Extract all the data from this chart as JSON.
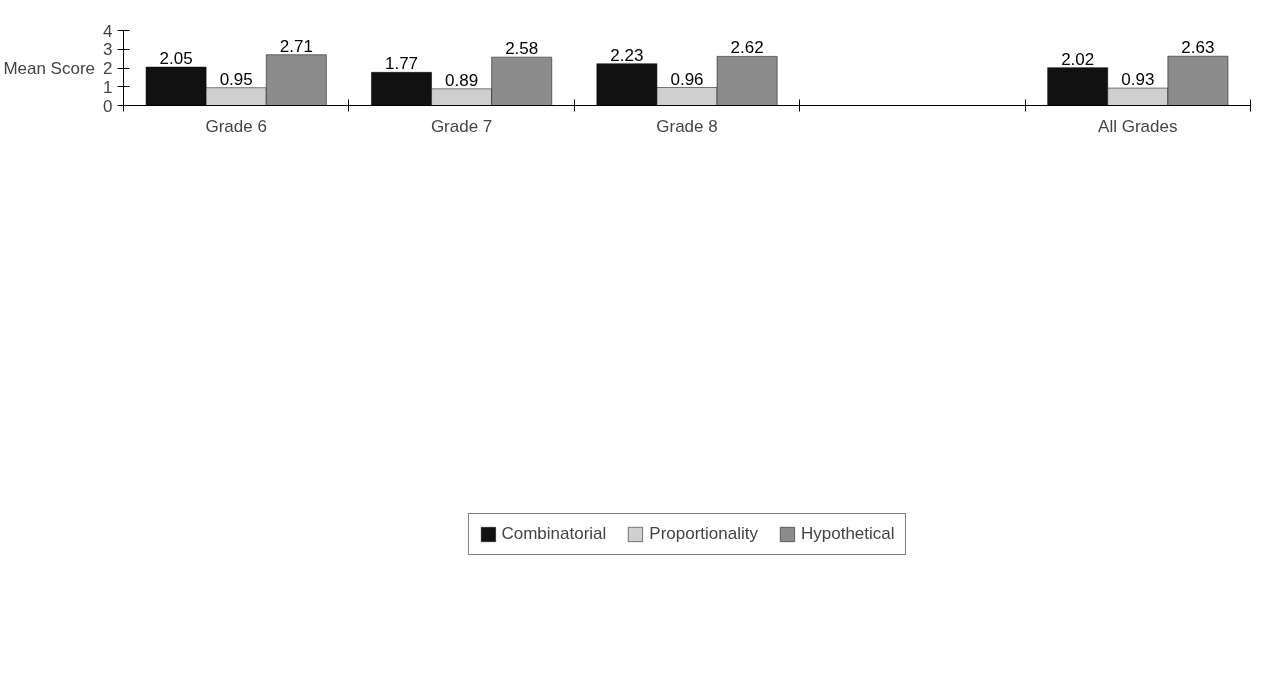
{
  "chart_data": {
    "type": "bar",
    "ylabel": "Mean Score",
    "categories": [
      "Grade 6",
      "Grade 7",
      "Grade 8",
      null,
      "All Grades"
    ],
    "series": [
      {
        "name": "Combinatorial",
        "color": "#111111",
        "values": [
          2.05,
          1.77,
          2.23,
          null,
          2.02
        ]
      },
      {
        "name": "Proportionality",
        "color": "#cfcfcf",
        "values": [
          0.95,
          0.89,
          0.96,
          null,
          0.93
        ]
      },
      {
        "name": "Hypothetical",
        "color": "#8c8c8c",
        "values": [
          2.71,
          2.58,
          2.62,
          null,
          2.63
        ]
      }
    ],
    "ylim": [
      0,
      4
    ],
    "yticks": [
      0,
      1,
      2,
      3,
      4
    ],
    "grid": false,
    "legend": "bottom",
    "data_labels": true
  }
}
